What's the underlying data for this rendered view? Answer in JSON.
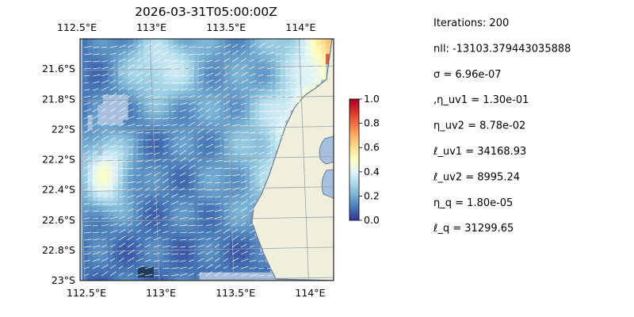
{
  "chart_data": {
    "type": "heatmap",
    "title": "2026-03-31T05:00:00Z",
    "xlabel": "",
    "ylabel": "",
    "x_ticks": [
      {
        "label": "112.5°E",
        "value": 112.5
      },
      {
        "label": "113°E",
        "value": 113.0
      },
      {
        "label": "113.5°E",
        "value": 113.5
      },
      {
        "label": "114°E",
        "value": 114.0
      }
    ],
    "y_ticks": [
      {
        "label": "21.6°S",
        "value": -21.6
      },
      {
        "label": "21.8°S",
        "value": -21.8
      },
      {
        "label": "22°S",
        "value": -22.0
      },
      {
        "label": "22.2°S",
        "value": -22.2
      },
      {
        "label": "22.4°S",
        "value": -22.4
      },
      {
        "label": "22.6°S",
        "value": -22.6
      },
      {
        "label": "22.8°S",
        "value": -22.8
      },
      {
        "label": "23°S",
        "value": -23.0
      }
    ],
    "xlim": [
      112.5,
      114.2
    ],
    "ylim": [
      -23.0,
      -21.4
    ],
    "grid": true,
    "colorbar": {
      "range": [
        0,
        1
      ],
      "ticks": [
        "0.0",
        "0.2",
        "0.4",
        "0.6",
        "0.8",
        "1.0"
      ],
      "colormap": [
        "#313695",
        "#4575b4",
        "#74add1",
        "#abd9e9",
        "#e0f3f8",
        "#ffffbf",
        "#fee090",
        "#fdae61",
        "#f46d43",
        "#d73027",
        "#a50026"
      ]
    },
    "field_summary": {
      "description_values": "normalized field, low (~0.05-0.2) offshore west/south, rising to ~0.6-0.8 toward the coast in the north-east",
      "west_mid_band_level": 0.45,
      "offshore_level": 0.1,
      "nearshore_north_level": 0.7
    },
    "colors": {
      "ocean": "#a5bfdd",
      "land": "#efefdb",
      "coast": "#6d7b95",
      "grid": "#9aa0a6",
      "arrows": "#ffffff"
    }
  },
  "stats": [
    {
      "text": "Iterations: 200"
    },
    {
      "text": "nll: -13103.379443035888"
    },
    {
      "text": "σ = 6.96e-07"
    },
    {
      "text": ",η_uv1 = 1.30e-01"
    },
    {
      "text": "η_uv2 = 8.78e-02"
    },
    {
      "text": "ℓ_uv1 = 34168.93"
    },
    {
      "text": "ℓ_uv2 = 8995.24"
    },
    {
      "text": "η_q = 1.80e-05"
    },
    {
      "text": "ℓ_q = 31299.65"
    }
  ]
}
